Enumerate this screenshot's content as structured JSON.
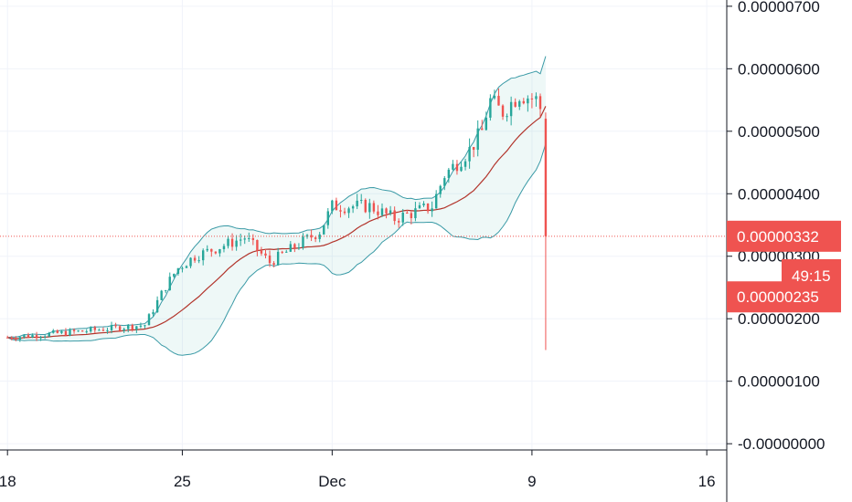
{
  "colors": {
    "up": "#26a69a",
    "down": "#ef5350",
    "band": "#3a9aa6",
    "basis": "#b2342b",
    "grid": "#f0f3fa",
    "priceLine": "#ef5350"
  },
  "chart_data": {
    "type": "candlestick",
    "title": "",
    "y_axis": {
      "ticks": [
        "-0.00000000",
        "0.00000100",
        "0.00000200",
        "0.00000300",
        "0.00000400",
        "0.00000500",
        "0.00000600",
        "0.00000700"
      ],
      "tick_values": [
        0,
        1e-06,
        2e-06,
        3e-06,
        4e-06,
        5e-06,
        6e-06,
        7e-06
      ],
      "range": [
        -1e-07,
        7.1e-06
      ]
    },
    "x_axis": {
      "ticks": [
        "18",
        "25",
        "Dec",
        "9",
        "16"
      ],
      "tick_days": [
        0,
        7,
        13,
        21,
        28
      ],
      "range": [
        -0.3,
        28.8
      ]
    },
    "indicators": [
      "Bollinger Bands"
    ],
    "current_price": {
      "value": 3.32e-06,
      "label": "0.00000332"
    },
    "countdown": {
      "label": "49:15"
    },
    "price_marker": {
      "value": 2.35e-06,
      "label": "0.00000235"
    },
    "anchors": [
      {
        "day": 0.0,
        "close": 1.7e-06
      },
      {
        "day": 3.0,
        "close": 1.8e-06
      },
      {
        "day": 5.5,
        "close": 1.9e-06
      },
      {
        "day": 6.3,
        "close": 2.5e-06
      },
      {
        "day": 6.8,
        "close": 2.8e-06
      },
      {
        "day": 7.5,
        "close": 3e-06
      },
      {
        "day": 9.5,
        "close": 3.3e-06
      },
      {
        "day": 10.5,
        "close": 2.9e-06
      },
      {
        "day": 12.5,
        "close": 3.4e-06
      },
      {
        "day": 13.0,
        "close": 3.8e-06
      },
      {
        "day": 14.5,
        "close": 3.8e-06
      },
      {
        "day": 15.5,
        "close": 3.6e-06
      },
      {
        "day": 17.0,
        "close": 3.8e-06
      },
      {
        "day": 17.5,
        "close": 4.3e-06
      },
      {
        "day": 18.5,
        "close": 4.7e-06
      },
      {
        "day": 19.0,
        "close": 5e-06
      },
      {
        "day": 19.3,
        "close": 5.5e-06
      },
      {
        "day": 19.8,
        "close": 5.3e-06
      },
      {
        "day": 20.5,
        "close": 5.6e-06
      },
      {
        "day": 21.2,
        "close": 5.5e-06
      },
      {
        "day": 21.5,
        "close": 5.2e-06
      }
    ],
    "final_candle": {
      "day": 21.55,
      "open": 5.2e-06,
      "high": 5.3e-06,
      "low": 1.5e-06,
      "close": 3.32e-06
    },
    "final_bands": {
      "upper": 6.2e-06,
      "basis": 5.4e-06,
      "lower": 4.8e-06
    }
  }
}
